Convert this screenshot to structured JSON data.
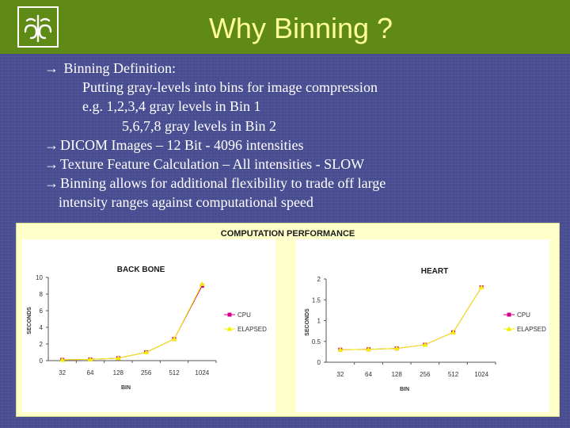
{
  "slide": {
    "title": "Why Binning ?",
    "bullets": [
      {
        "arrow": "→",
        "text": " Binning Definition:",
        "indent": 0
      },
      {
        "arrow": "",
        "text": "Putting gray-levels into bins for image compression",
        "indent": 1
      },
      {
        "arrow": "",
        "text": "e.g. 1,2,3,4 gray levels in Bin 1",
        "indent": 1
      },
      {
        "arrow": "",
        "text": "5,6,7,8 gray levels in Bin 2",
        "indent": 2
      },
      {
        "arrow": "→",
        "text": "DICOM Images – 12 Bit  - 4096 intensities",
        "indent": 0
      },
      {
        "arrow": "→",
        "text": "Texture Feature Calculation – All intensities - SLOW",
        "indent": 0
      },
      {
        "arrow": "→",
        "text": "Binning allows for additional flexibility to trade off large",
        "indent": 0
      },
      {
        "arrow": "",
        "text": "intensity ranges against computational speed",
        "indent": 3
      }
    ]
  },
  "panel_title": "COMPUTATION PERFORMANCE",
  "colors": {
    "header": "#5f8a15",
    "title_text": "#ffff99",
    "background": "#4a4f93",
    "cpu": "#d4008c",
    "elapsed": "#f2f200"
  },
  "chart_data": [
    {
      "type": "line",
      "title": "BACK BONE",
      "xlabel": "BIN",
      "ylabel": "SECONDS",
      "categories": [
        "32",
        "64",
        "128",
        "256",
        "512",
        "1024"
      ],
      "ylim": [
        0,
        10
      ],
      "yticks": [
        "0",
        "2",
        "4",
        "6",
        "8",
        "10"
      ],
      "series": [
        {
          "name": "CPU",
          "marker": "square",
          "values": [
            0.1,
            0.15,
            0.3,
            1.0,
            2.6,
            9.0
          ]
        },
        {
          "name": "ELAPSED",
          "marker": "triangle",
          "values": [
            0.1,
            0.15,
            0.3,
            1.0,
            2.6,
            9.2
          ]
        }
      ],
      "legend": "right",
      "grid": false
    },
    {
      "type": "line",
      "title": "HEART",
      "xlabel": "BIN",
      "ylabel": "SECONDS",
      "categories": [
        "32",
        "64",
        "128",
        "256",
        "512",
        "1024"
      ],
      "ylim": [
        0,
        2
      ],
      "yticks": [
        "0",
        "0.5",
        "1",
        "1.5",
        "2"
      ],
      "series": [
        {
          "name": "CPU",
          "marker": "square",
          "values": [
            0.3,
            0.31,
            0.33,
            0.42,
            0.72,
            1.8
          ]
        },
        {
          "name": "ELAPSED",
          "marker": "triangle",
          "values": [
            0.3,
            0.31,
            0.33,
            0.42,
            0.72,
            1.8
          ]
        }
      ],
      "legend": "right",
      "grid": false
    }
  ]
}
